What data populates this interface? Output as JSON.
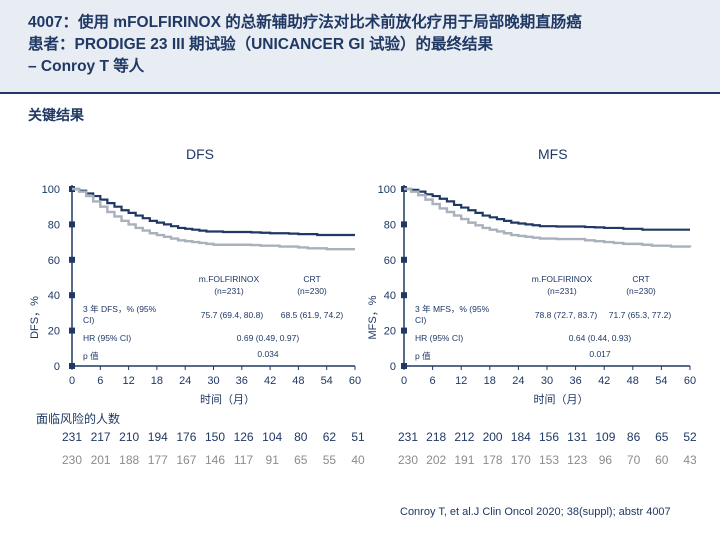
{
  "header": {
    "title_line1": "4007：使用 mFOLFIRINOX 的总新辅助疗法对比术前放化疗用于局部晚期直肠癌",
    "title_line2": "患者：PRODIGE 23 III 期试验（UNICANCER GI 试验）的最终结果",
    "title_line3": "– Conroy T 等人"
  },
  "section_title": "关键结果",
  "at_risk_label": "面临风险的人数",
  "citation": "Conroy T, et al.J Clin Oncol 2020; 38(suppl); abstr 4007",
  "colors": {
    "navy": "#1f3864",
    "gray": "#a9b1bd",
    "text": "#1f3864",
    "risk_gray": "#8c8c8c"
  },
  "chart_data": [
    {
      "type": "line",
      "title": "DFS",
      "ylabel": "DFS，%",
      "xlabel": "时间（月）",
      "xlim": [
        0,
        60
      ],
      "ylim": [
        0,
        100
      ],
      "xticks": [
        "0",
        "6",
        "12",
        "18",
        "24",
        "30",
        "36",
        "42",
        "48",
        "54",
        "60"
      ],
      "yticks": [
        "0",
        "20",
        "40",
        "60",
        "80",
        "100"
      ],
      "legend": {
        "arm1": "m.FOLFIRINOX\n(n=231)",
        "arm2": "CRT\n(n=230)"
      },
      "rows": [
        {
          "label": "3 年 DFS，% (95%\nCI)",
          "arm1": "75.7 (69.4, 80.8)",
          "arm2": "68.5 (61.9, 74.2)"
        },
        {
          "label": "HR (95% CI)",
          "value": "0.69 (0.49, 0.97)"
        },
        {
          "label": "p 值",
          "value": "0.034"
        }
      ],
      "series": [
        {
          "name": "m.FOLFIRINOX",
          "color": "#1f3864",
          "points": [
            [
              0,
              100
            ],
            [
              1.5,
              99
            ],
            [
              3,
              97.5
            ],
            [
              4.5,
              96
            ],
            [
              6,
              94
            ],
            [
              7.5,
              92
            ],
            [
              9,
              90
            ],
            [
              10.5,
              88
            ],
            [
              12,
              86.5
            ],
            [
              13.5,
              85
            ],
            [
              15,
              83.5
            ],
            [
              16.5,
              82
            ],
            [
              18,
              81
            ],
            [
              19.5,
              80
            ],
            [
              21,
              79
            ],
            [
              22.5,
              78
            ],
            [
              24,
              77.5
            ],
            [
              25.5,
              77
            ],
            [
              27,
              76.5
            ],
            [
              28.5,
              76
            ],
            [
              30,
              76
            ],
            [
              32,
              75.7
            ],
            [
              34,
              75.7
            ],
            [
              36,
              75.7
            ],
            [
              38,
              75.5
            ],
            [
              40,
              75.3
            ],
            [
              42,
              75
            ],
            [
              44,
              75
            ],
            [
              46,
              74.8
            ],
            [
              48,
              74.5
            ],
            [
              50,
              74.5
            ],
            [
              52,
              74
            ],
            [
              54,
              74
            ],
            [
              56,
              74
            ],
            [
              58,
              74
            ],
            [
              60,
              74
            ]
          ]
        },
        {
          "name": "CRT",
          "color": "#a9b1bd",
          "points": [
            [
              0,
              100
            ],
            [
              1.5,
              98.5
            ],
            [
              3,
              96
            ],
            [
              4.5,
              93
            ],
            [
              6,
              90
            ],
            [
              7.5,
              87
            ],
            [
              9,
              84.5
            ],
            [
              10.5,
              82
            ],
            [
              12,
              80
            ],
            [
              13.5,
              78
            ],
            [
              15,
              76.5
            ],
            [
              16.5,
              75
            ],
            [
              18,
              74
            ],
            [
              19.5,
              73
            ],
            [
              21,
              72
            ],
            [
              22.5,
              71
            ],
            [
              24,
              70.5
            ],
            [
              25.5,
              70
            ],
            [
              27,
              69.5
            ],
            [
              28.5,
              69
            ],
            [
              30,
              68.5
            ],
            [
              33,
              68.5
            ],
            [
              36,
              68.5
            ],
            [
              38,
              68.3
            ],
            [
              40,
              68
            ],
            [
              42,
              68
            ],
            [
              44,
              67.5
            ],
            [
              46,
              67.5
            ],
            [
              48,
              67
            ],
            [
              50,
              66.5
            ],
            [
              52,
              66.5
            ],
            [
              54,
              66
            ],
            [
              56,
              66
            ],
            [
              58,
              66
            ],
            [
              60,
              66
            ]
          ]
        }
      ],
      "at_risk": {
        "arm1": [
          "231",
          "217",
          "210",
          "194",
          "176",
          "150",
          "126",
          "104",
          "80",
          "62",
          "51"
        ],
        "arm2": [
          "230",
          "201",
          "188",
          "177",
          "167",
          "146",
          "117",
          "91",
          "65",
          "55",
          "40"
        ]
      }
    },
    {
      "type": "line",
      "title": "MFS",
      "ylabel": "MFS，%",
      "xlabel": "时间（月）",
      "xlim": [
        0,
        60
      ],
      "ylim": [
        0,
        100
      ],
      "xticks": [
        "0",
        "6",
        "12",
        "18",
        "24",
        "30",
        "36",
        "42",
        "48",
        "54",
        "60"
      ],
      "yticks": [
        "0",
        "20",
        "40",
        "60",
        "80",
        "100"
      ],
      "legend": {
        "arm1": "m.FOLFIRINOX\n(n=231)",
        "arm2": "CRT\n(n=230)"
      },
      "rows": [
        {
          "label": "3 年 MFS，% (95%\nCI)",
          "arm1": "78.8 (72.7, 83.7)",
          "arm2": "71.7 (65.3, 77.2)"
        },
        {
          "label": "HR (95% CI)",
          "value": "0.64 (0.44, 0.93)"
        },
        {
          "label": "p 值",
          "value": "0.017"
        }
      ],
      "series": [
        {
          "name": "m.FOLFIRINOX",
          "color": "#1f3864",
          "points": [
            [
              0,
              100
            ],
            [
              1.5,
              99.5
            ],
            [
              3,
              98.5
            ],
            [
              4.5,
              97
            ],
            [
              6,
              96
            ],
            [
              7.5,
              94.5
            ],
            [
              9,
              93
            ],
            [
              10.5,
              91
            ],
            [
              12,
              89.5
            ],
            [
              13.5,
              88
            ],
            [
              15,
              86.5
            ],
            [
              16.5,
              85
            ],
            [
              18,
              84
            ],
            [
              19.5,
              83
            ],
            [
              21,
              82
            ],
            [
              22.5,
              81
            ],
            [
              24,
              80.5
            ],
            [
              25.5,
              80
            ],
            [
              27,
              79.5
            ],
            [
              28.5,
              79
            ],
            [
              30,
              79
            ],
            [
              32,
              78.8
            ],
            [
              34,
              78.8
            ],
            [
              36,
              78.8
            ],
            [
              38,
              78.5
            ],
            [
              40,
              78.3
            ],
            [
              42,
              78
            ],
            [
              44,
              78
            ],
            [
              46,
              77.5
            ],
            [
              48,
              77.5
            ],
            [
              50,
              77
            ],
            [
              52,
              77
            ],
            [
              54,
              77
            ],
            [
              56,
              77
            ],
            [
              58,
              77
            ],
            [
              60,
              77
            ]
          ]
        },
        {
          "name": "CRT",
          "color": "#a9b1bd",
          "points": [
            [
              0,
              100
            ],
            [
              1.5,
              98.5
            ],
            [
              3,
              96.5
            ],
            [
              4.5,
              94
            ],
            [
              6,
              91.5
            ],
            [
              7.5,
              89
            ],
            [
              9,
              87
            ],
            [
              10.5,
              85
            ],
            [
              12,
              83
            ],
            [
              13.5,
              81
            ],
            [
              15,
              79.5
            ],
            [
              16.5,
              78
            ],
            [
              18,
              77
            ],
            [
              19.5,
              76
            ],
            [
              21,
              75
            ],
            [
              22.5,
              74
            ],
            [
              24,
              73.5
            ],
            [
              25.5,
              73
            ],
            [
              27,
              72.5
            ],
            [
              28.5,
              72
            ],
            [
              30,
              72
            ],
            [
              32,
              71.7
            ],
            [
              34,
              71.7
            ],
            [
              36,
              71.7
            ],
            [
              38,
              71
            ],
            [
              40,
              70.5
            ],
            [
              42,
              70
            ],
            [
              44,
              69.5
            ],
            [
              46,
              69
            ],
            [
              48,
              69
            ],
            [
              50,
              68.5
            ],
            [
              52,
              68
            ],
            [
              54,
              68
            ],
            [
              56,
              67.5
            ],
            [
              58,
              67.5
            ],
            [
              60,
              67
            ]
          ]
        }
      ],
      "at_risk": {
        "arm1": [
          "231",
          "218",
          "212",
          "200",
          "184",
          "156",
          "131",
          "109",
          "86",
          "65",
          "52"
        ],
        "arm2": [
          "230",
          "202",
          "191",
          "178",
          "170",
          "153",
          "123",
          "96",
          "70",
          "60",
          "43"
        ]
      }
    }
  ]
}
